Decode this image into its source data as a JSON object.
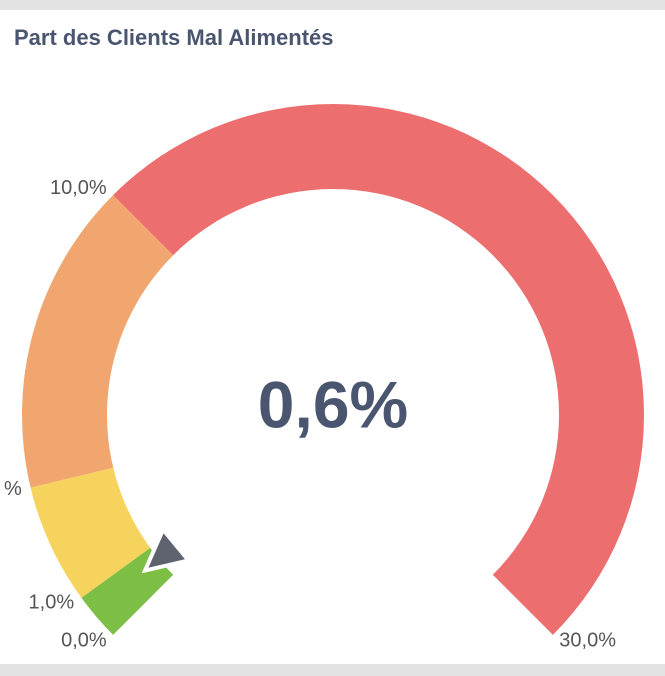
{
  "chart_data": {
    "type": "gauge",
    "title": "Part des Clients Mal Alimentés",
    "value": 0.6,
    "value_label": "0,6%",
    "ylim": [
      0,
      30
    ],
    "yticks": [
      {
        "value": 0,
        "label": "0,0%"
      },
      {
        "value": 1,
        "label": "1,0%"
      },
      {
        "value": 3.5,
        "label": "%"
      },
      {
        "value": 10,
        "label": "10,0%"
      },
      {
        "value": 30,
        "label": "30,0%"
      }
    ],
    "bands": [
      {
        "from": 0,
        "to": 1,
        "color": "#7dbf45"
      },
      {
        "from": 1,
        "to": 3.5,
        "color": "#f6d35d"
      },
      {
        "from": 3.5,
        "to": 10,
        "color": "#f0a66e"
      },
      {
        "from": 10,
        "to": 30,
        "color": "#ec6e6f"
      }
    ],
    "needle_color": "#5f6370"
  }
}
